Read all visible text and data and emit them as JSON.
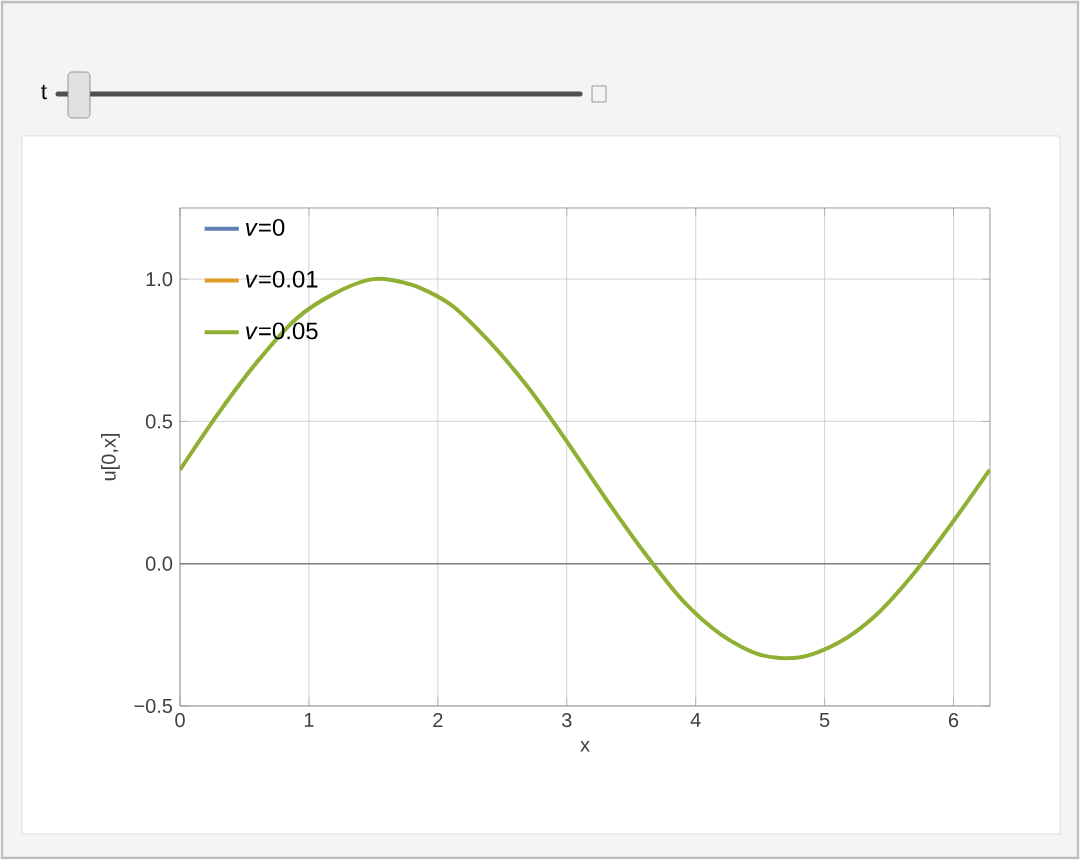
{
  "chart_data": {
    "type": "line",
    "xlabel": "x",
    "ylabel": "u[0,x]",
    "annotations": [
      "t"
    ],
    "x": [
      0,
      0.3,
      0.6,
      0.9,
      1.2,
      1.5,
      1.8,
      2.1,
      2.4,
      2.7,
      3.0,
      3.3,
      3.6,
      3.9,
      4.2,
      4.5,
      4.8,
      5.1,
      5.4,
      5.7,
      6.0,
      6.28
    ],
    "series": [
      {
        "name": "*v*=0",
        "color": "#5e81b5",
        "values": [
          null,
          null,
          null,
          null,
          null,
          null,
          null,
          null,
          null,
          null,
          null,
          null,
          null,
          null,
          null,
          null,
          null,
          null,
          null,
          null,
          null,
          null
        ]
      },
      {
        "name": "*v*=0.01",
        "color": "#e19c24",
        "values": [
          null,
          null,
          null,
          null,
          null,
          null,
          null,
          null,
          null,
          null,
          null,
          null,
          null,
          null,
          null,
          null,
          null,
          null,
          null,
          null,
          null,
          null
        ]
      },
      {
        "name": "*v*=0.05",
        "color": "#8fb032",
        "values": [
          0.33,
          0.53,
          0.71,
          0.86,
          0.95,
          1.0,
          0.98,
          0.91,
          0.78,
          0.62,
          0.43,
          0.23,
          0.04,
          -0.13,
          -0.25,
          -0.32,
          -0.33,
          -0.28,
          -0.18,
          -0.03,
          0.15,
          0.33
        ]
      }
    ],
    "xlim": [
      0,
      6.283
    ],
    "ylim": [
      -0.5,
      1.25
    ],
    "xticks": [
      0,
      1,
      2,
      3,
      4,
      5,
      6
    ],
    "yticks": [
      {
        "value": -0.5,
        "label": "−0.5"
      },
      {
        "value": 0,
        "label": "0.0"
      },
      {
        "value": 0.5,
        "label": "0.5"
      },
      {
        "value": 1,
        "label": "1.0"
      }
    ],
    "grid": true,
    "legend": "top left",
    "marker": "none",
    "line_style": "solid"
  }
}
